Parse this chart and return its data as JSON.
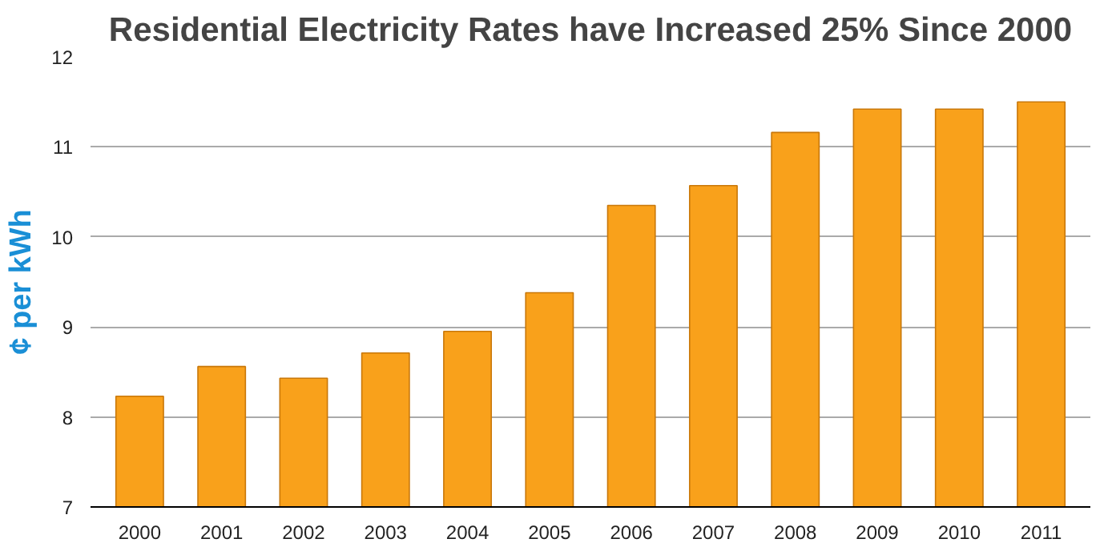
{
  "chart_data": {
    "type": "bar",
    "title": "Residential Electricity Rates have Increased 25% Since 2000",
    "ylabel": "¢ per kWh",
    "categories": [
      "2000",
      "2001",
      "2002",
      "2003",
      "2004",
      "2005",
      "2006",
      "2007",
      "2008",
      "2009",
      "2010",
      "2011"
    ],
    "values": [
      8.23,
      8.56,
      8.43,
      8.71,
      8.95,
      9.38,
      10.35,
      10.57,
      11.16,
      11.42,
      11.42,
      11.5
    ],
    "color": "#f9a11b",
    "ylim": [
      7,
      12
    ],
    "yticks": [
      7,
      8,
      9,
      10,
      11,
      12
    ],
    "grid": "y"
  }
}
